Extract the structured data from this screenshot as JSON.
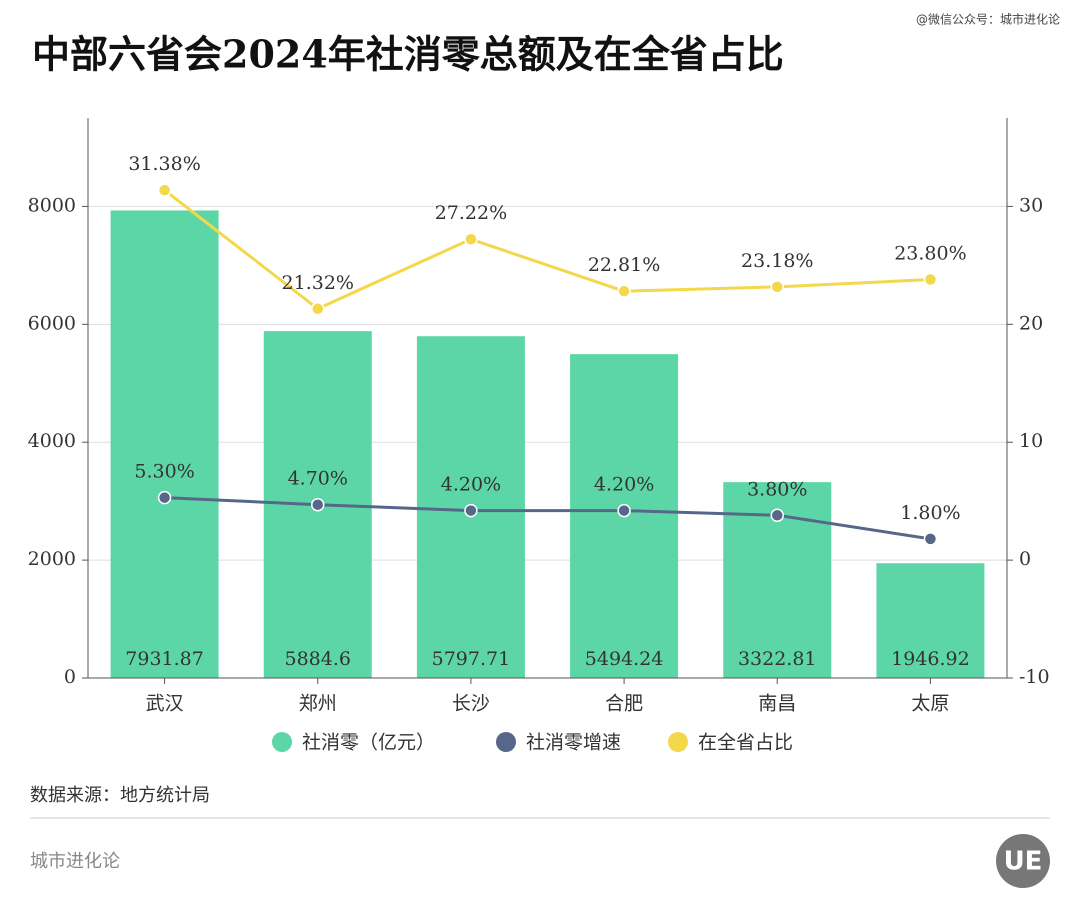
{
  "chart_data": {
    "type": "bar",
    "title": "中部六省会2024年社消零总额及在全省占比",
    "watermark": "@微信公众号：城市进化论",
    "source": "数据来源：地方统计局",
    "footer": "城市进化论",
    "logo": "UE",
    "categories": [
      "武汉",
      "郑州",
      "长沙",
      "合肥",
      "南昌",
      "太原"
    ],
    "series": [
      {
        "name": "社消零（亿元）",
        "type": "bar",
        "axis": "y",
        "color": "#5dd6a7",
        "values": [
          7931.87,
          5884.6,
          5797.71,
          5494.24,
          3322.81,
          1946.92
        ]
      },
      {
        "name": "社消零增速",
        "type": "line",
        "axis": "y2",
        "color": "#56678a",
        "values": [
          5.3,
          4.7,
          4.2,
          4.2,
          3.8,
          1.8
        ],
        "value_labels": [
          "5.30%",
          "4.70%",
          "4.20%",
          "4.20%",
          "3.80%",
          "1.80%"
        ]
      },
      {
        "name": "在全省占比",
        "type": "line",
        "axis": "y2",
        "color": "#f3d84c",
        "values": [
          31.38,
          21.32,
          27.22,
          22.81,
          23.18,
          23.8
        ],
        "value_labels": [
          "31.38%",
          "21.32%",
          "27.22%",
          "22.81%",
          "23.18%",
          "23.80%"
        ]
      }
    ],
    "ylim": [
      0,
      9500
    ],
    "yticks": [
      0,
      2000,
      4000,
      6000,
      8000
    ],
    "y2lim": [
      -10,
      37.5
    ],
    "y2ticks": [
      -10,
      0,
      10,
      20,
      30
    ],
    "grid": true
  }
}
